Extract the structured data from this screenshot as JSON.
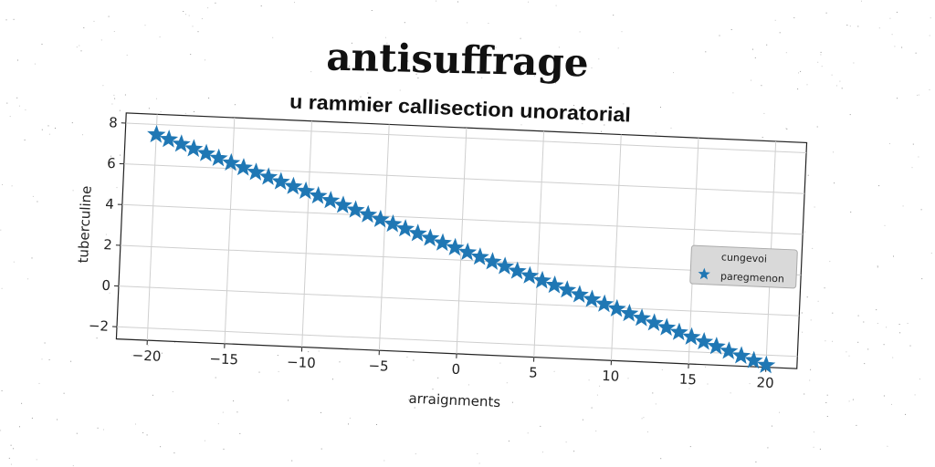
{
  "chart_data": {
    "type": "scatter",
    "title": "antisuffrage",
    "subtitle": "u rammier callisection unoratorial",
    "xlabel": "arraignments",
    "ylabel": "tuberculine",
    "xlim": [
      -22,
      22
    ],
    "ylim": [
      -2.6,
      8.5
    ],
    "xticks": [
      -20,
      -15,
      -10,
      -5,
      0,
      5,
      10,
      15,
      20
    ],
    "xtick_labels": [
      "−20",
      "−15",
      "−10",
      "−5",
      "0",
      "5",
      "10",
      "15",
      "20"
    ],
    "yticks": [
      -2,
      0,
      2,
      4,
      6,
      8
    ],
    "ytick_labels": [
      "−2",
      "0",
      "2",
      "4",
      "6",
      "8"
    ],
    "grid": true,
    "legend": {
      "title": "cungevoi",
      "placement": "right"
    },
    "series": [
      {
        "name": "paregmenon",
        "marker": "star",
        "color": "#1f77b4",
        "x_start": -20,
        "x_end": 20,
        "num_points": 50,
        "slope": -0.25,
        "intercept": 2.5
      }
    ]
  }
}
